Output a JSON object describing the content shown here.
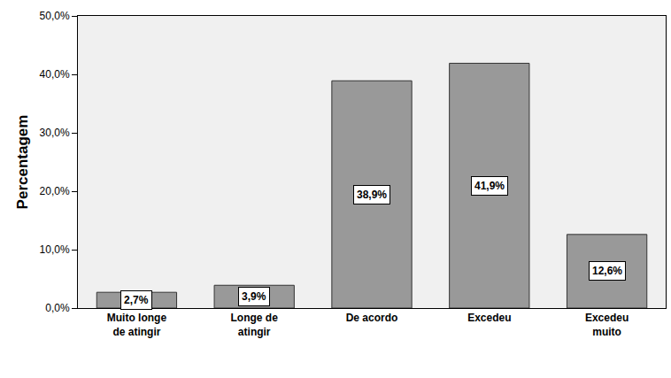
{
  "chart_data": {
    "type": "bar",
    "y_label": "Percentagem",
    "categories": [
      "Muito longe\nde atingir",
      "Longe de\natingir",
      "De acordo",
      "Excedeu",
      "Excedeu\nmuito"
    ],
    "values": [
      2.7,
      3.9,
      38.9,
      41.9,
      12.6
    ],
    "value_labels": [
      "2,7%",
      "3,9%",
      "38,9%",
      "41,9%",
      "12,6%"
    ],
    "color": "#999999",
    "ylim": [
      0,
      50
    ],
    "yticks": [
      {
        "value": 0,
        "label": "0,0%"
      },
      {
        "value": 10,
        "label": "10,0%"
      },
      {
        "value": 20,
        "label": "20,0%"
      },
      {
        "value": 30,
        "label": "30,0%"
      },
      {
        "value": 40,
        "label": "40,0%"
      },
      {
        "value": 50,
        "label": "50,0%"
      }
    ],
    "grid": false,
    "data_labels": true
  }
}
